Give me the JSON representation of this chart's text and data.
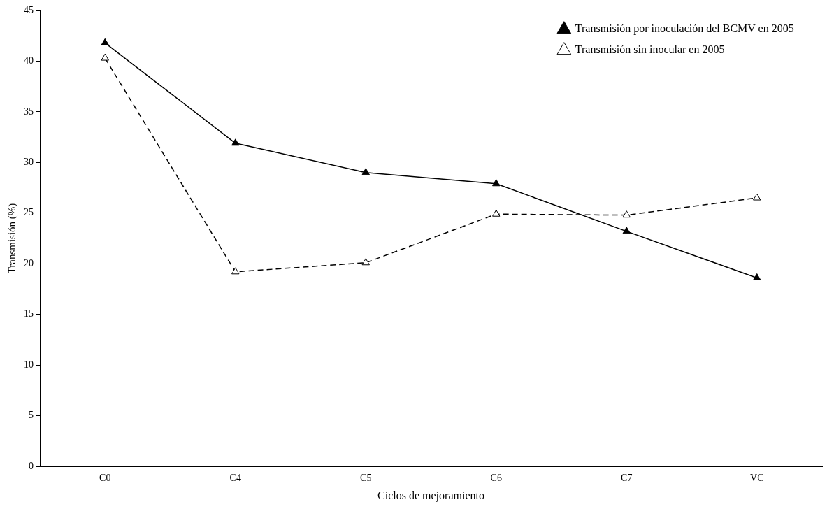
{
  "chart_data": {
    "type": "line",
    "xlabel": "Ciclos de mejoramiento",
    "ylabel": "Transmisión (%)",
    "categories": [
      "C0",
      "C4",
      "C5",
      "C6",
      "C7",
      "VC"
    ],
    "series": [
      {
        "name": "Transmisión por inoculación del BCMV en 2005",
        "color": "#000000",
        "values": [
          41.8,
          31.9,
          29.0,
          27.9,
          23.2,
          18.6
        ],
        "line_style": "solid",
        "marker": "triangle"
      },
      {
        "name": "Transmisión sin inocular en 2005",
        "color": "#000000",
        "values": [
          40.3,
          19.2,
          20.1,
          24.9,
          24.8,
          26.5
        ],
        "line_style": "dashed",
        "marker": "triangle"
      }
    ],
    "ylim": [
      0,
      45
    ],
    "yticks": [
      0,
      5,
      10,
      15,
      20,
      25,
      30,
      35,
      40,
      45
    ],
    "grid": false,
    "legend": "top right"
  }
}
